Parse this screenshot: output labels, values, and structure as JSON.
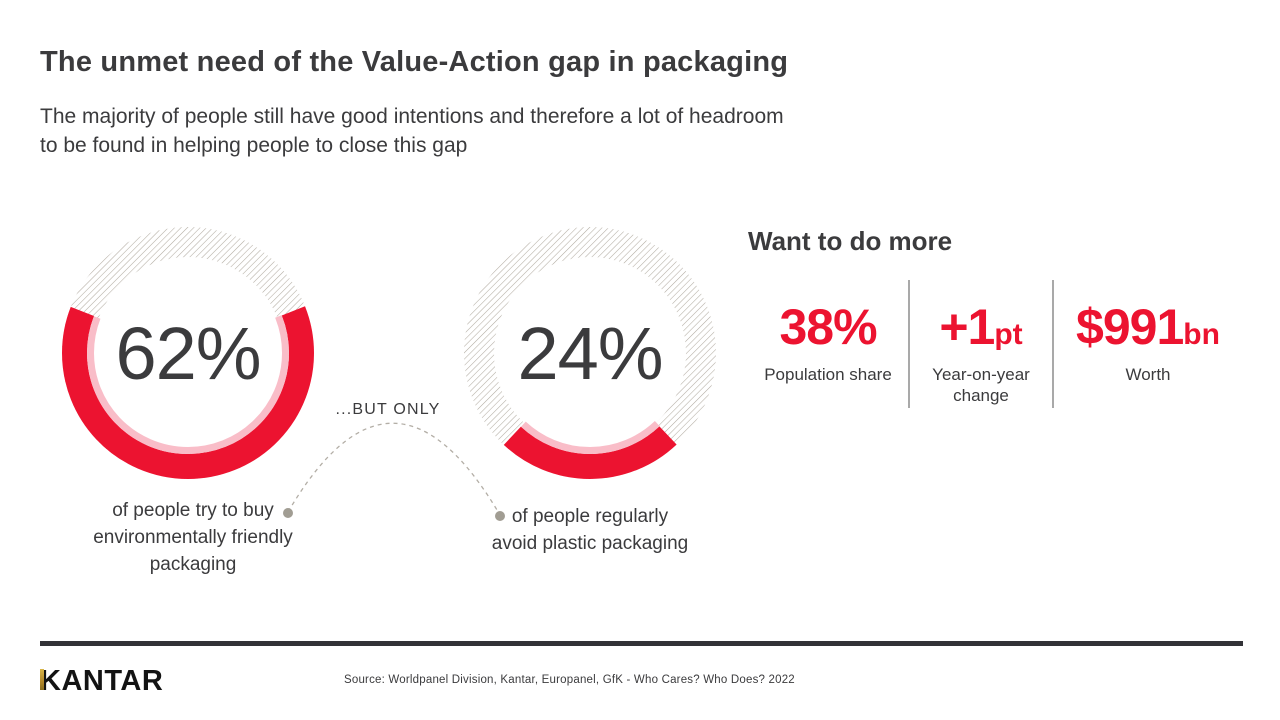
{
  "header": {
    "title": "The unmet need of the Value-Action gap in packaging",
    "subtitle_lines": [
      "The majority of people still have good intentions and therefore a lot of headroom",
      "to be found in helping people to close this gap"
    ]
  },
  "donuts": [
    {
      "value_label": "62%",
      "percent": 62,
      "caption_lines": [
        "of people try to buy",
        "environmentally friendly",
        "packaging"
      ]
    },
    {
      "value_label": "24%",
      "percent": 24,
      "caption_lines": [
        "of people regularly",
        "avoid plastic packaging"
      ]
    }
  ],
  "connector": {
    "label": "...BUT ONLY"
  },
  "panel": {
    "heading": "Want to do more",
    "stats": [
      {
        "value": "38%",
        "suffix": "",
        "label": "Population share"
      },
      {
        "value": "+1",
        "suffix": "pt",
        "label": "Year-on-year change"
      },
      {
        "value": "$991",
        "suffix": "bn",
        "label": "Worth"
      }
    ]
  },
  "footer": {
    "logo_text": "KANTAR",
    "source": "Source: Worldpanel Division, Kantar, Europanel, GfK - Who Cares? Who Does? 2022"
  },
  "colors": {
    "accent_red": "#EC1330",
    "accent_pink": "#F9BDC8",
    "hatch_gray": "#B2ACA2",
    "text_dark": "#3B3B3D",
    "stat_divider_gray": "#A9A9A9",
    "footer_bar_dark": "#323237",
    "logo_gold": "#C9A13B",
    "connector_dot_gray": "#A19D93"
  },
  "chart_data": [
    {
      "type": "pie",
      "subtype": "donut-gauge",
      "title": "of people try to buy environmentally friendly packaging",
      "labels": [
        "try to buy environmentally friendly packaging",
        "remainder"
      ],
      "values": [
        62,
        38
      ],
      "center_label": "62%",
      "colors": [
        "#EC1330",
        "hatched-gray"
      ],
      "layout": "filled red arc centered at bottom, hatched ring for remainder"
    },
    {
      "type": "pie",
      "subtype": "donut-gauge",
      "title": "of people regularly avoid plastic packaging",
      "labels": [
        "regularly avoid plastic packaging",
        "remainder"
      ],
      "values": [
        24,
        76
      ],
      "center_label": "24%",
      "colors": [
        "#EC1330",
        "hatched-gray"
      ],
      "layout": "filled red arc centered at bottom, hatched ring for remainder"
    },
    {
      "type": "table",
      "title": "Want to do more",
      "categories": [
        "Population share",
        "Year-on-year change",
        "Worth"
      ],
      "values": [
        "38%",
        "+1pt",
        "$991bn"
      ]
    }
  ]
}
